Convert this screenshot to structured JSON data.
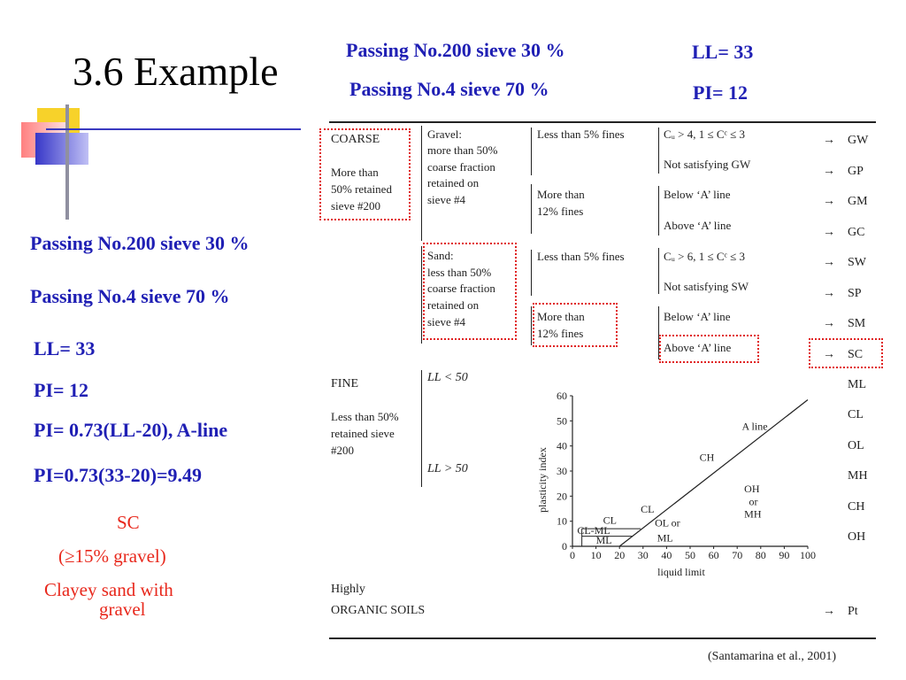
{
  "slide": {
    "title": "3.6 Example",
    "header": {
      "pass200": "Passing No.200 sieve 30 %",
      "pass4": "Passing No.4 sieve 70 %",
      "ll": "LL= 33",
      "pi": "PI= 12"
    },
    "left": {
      "pass200": "Passing No.200 sieve 30 %",
      "pass4": "Passing No.4 sieve 70 %",
      "ll": "LL= 33",
      "pi": "PI= 12",
      "aline_eq": "PI= 0.73(LL-20), A-line",
      "aline_calc": "PI=0.73(33-20)=9.49"
    },
    "result": {
      "symbol": "SC",
      "gravel_note": "(≥15% gravel)",
      "name_line1": "Clayey sand with",
      "name_line2": "gravel"
    },
    "citation": "(Santamarina et al., 2001)",
    "colors": {
      "blue": "#1f1fb4",
      "red": "#e8281c",
      "dotted": "#e02020"
    }
  },
  "uscs": {
    "coarse": {
      "head": "COARSE",
      "l1": "More than",
      "l2": "50% retained",
      "l3": "sieve #200"
    },
    "gravel": {
      "l1": "Gravel:",
      "l2": "more than 50%",
      "l3": "coarse fraction",
      "l4": "retained on",
      "l5": "sieve #4"
    },
    "sand": {
      "l1": "Sand:",
      "l2": "less than 50%",
      "l3": "coarse fraction",
      "l4": "retained on",
      "l5": "sieve #4"
    },
    "fines_lt5_g": "Less than 5% fines",
    "fines_gt12_g": [
      "More than",
      "12% fines"
    ],
    "fines_lt5_s": "Less than 5% fines",
    "fines_gt12_s": [
      "More than",
      "12% fines"
    ],
    "crit_gw": "Cᵤ > 4, 1 ≤ Cᶜ ≤ 3",
    "crit_notgw": "Not satisfying GW",
    "crit_below_g": "Below ‘A’ line",
    "crit_above_g": "Above ‘A’ line",
    "crit_sw": "Cᵤ > 6, 1 ≤ Cᶜ ≤ 3",
    "crit_notsw": "Not satisfying SW",
    "crit_below_s": "Below ‘A’ line",
    "crit_above_s": "Above ‘A’ line",
    "groups": [
      "GW",
      "GP",
      "GM",
      "GC",
      "SW",
      "SP",
      "SM",
      "SC"
    ],
    "fine": {
      "head": "FINE",
      "l1": "Less than 50%",
      "l2": "retained sieve",
      "l3": "#200",
      "ll_lt": "LL < 50",
      "ll_gt": "LL > 50"
    },
    "fine_groups": [
      "ML",
      "CL",
      "OL",
      "MH",
      "CH",
      "OH"
    ],
    "organic": {
      "l1": "Highly",
      "l2": "ORGANIC SOILS",
      "group": "Pt"
    },
    "arrow": "→"
  },
  "chart_data": {
    "type": "line",
    "xlabel": "liquid limit",
    "ylabel": "plasticity index",
    "xlim": [
      0,
      100
    ],
    "ylim": [
      0,
      60
    ],
    "x_ticks": [
      0,
      10,
      20,
      30,
      40,
      50,
      60,
      70,
      80,
      90,
      100
    ],
    "y_ticks": [
      0,
      10,
      20,
      30,
      40,
      50,
      60
    ],
    "series": [
      {
        "name": "A line",
        "x": [
          20,
          100
        ],
        "y": [
          0,
          58.4
        ]
      }
    ],
    "zones": {
      "cl_ml_upper": {
        "x": [
          4,
          29
        ],
        "y": [
          7,
          7
        ]
      },
      "cl_ml_lower": {
        "x": [
          4,
          25.5
        ],
        "y": [
          4,
          4
        ]
      },
      "ll50": {
        "x": [
          50,
          50
        ],
        "y": [
          0,
          60
        ]
      }
    },
    "region_labels": {
      "aline": "A line",
      "ch": "CH",
      "cl": "CL",
      "clr": "CL",
      "clml": "CL-ML",
      "ml": "ML",
      "olml1": "OL or",
      "olml2": "ML",
      "ohmh1": "OH",
      "ohmh2": "or",
      "ohmh3": "MH"
    }
  }
}
